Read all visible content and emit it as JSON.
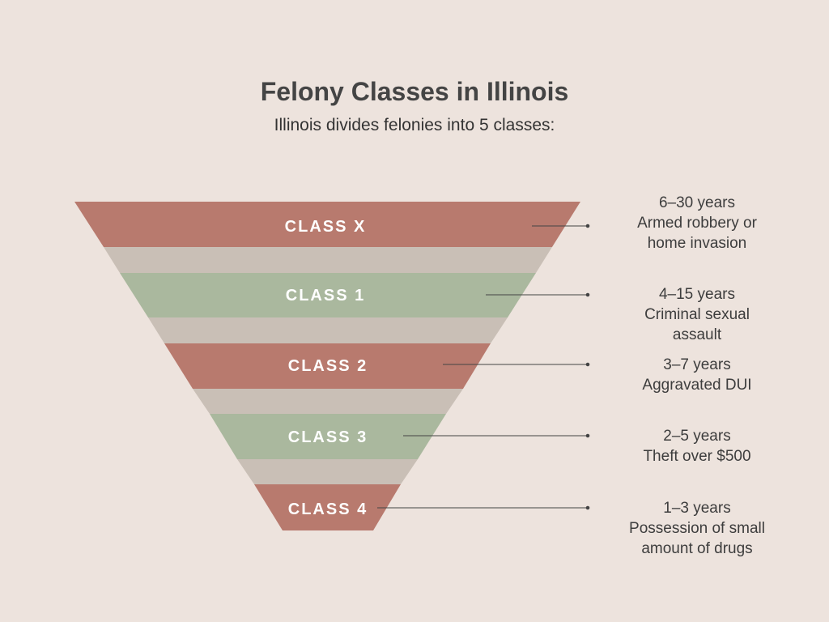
{
  "header": {
    "title": "Felony Classes in Illinois",
    "subtitle": "Illinois divides felonies into 5 classes:"
  },
  "colors": {
    "background": "#ede3dd",
    "red_band": "#b87a6e",
    "green_band": "#aab89e",
    "connector": "#c9bfb6"
  },
  "classes": [
    {
      "label": "CLASS X",
      "years": "6–30 years",
      "example_lines": [
        "Armed robbery or",
        "home invasion"
      ],
      "color": "red"
    },
    {
      "label": "CLASS 1",
      "years": "4–15 years",
      "example_lines": [
        "Criminal sexual",
        "assault"
      ],
      "color": "green"
    },
    {
      "label": "CLASS 2",
      "years": "3–7 years",
      "example_lines": [
        "Aggravated DUI"
      ],
      "color": "red"
    },
    {
      "label": "CLASS 3",
      "years": "2–5 years",
      "example_lines": [
        "Theft over $500"
      ],
      "color": "green"
    },
    {
      "label": "CLASS 4",
      "years": "1–3 years",
      "example_lines": [
        "Possession of small",
        "amount of drugs"
      ],
      "color": "red"
    }
  ]
}
